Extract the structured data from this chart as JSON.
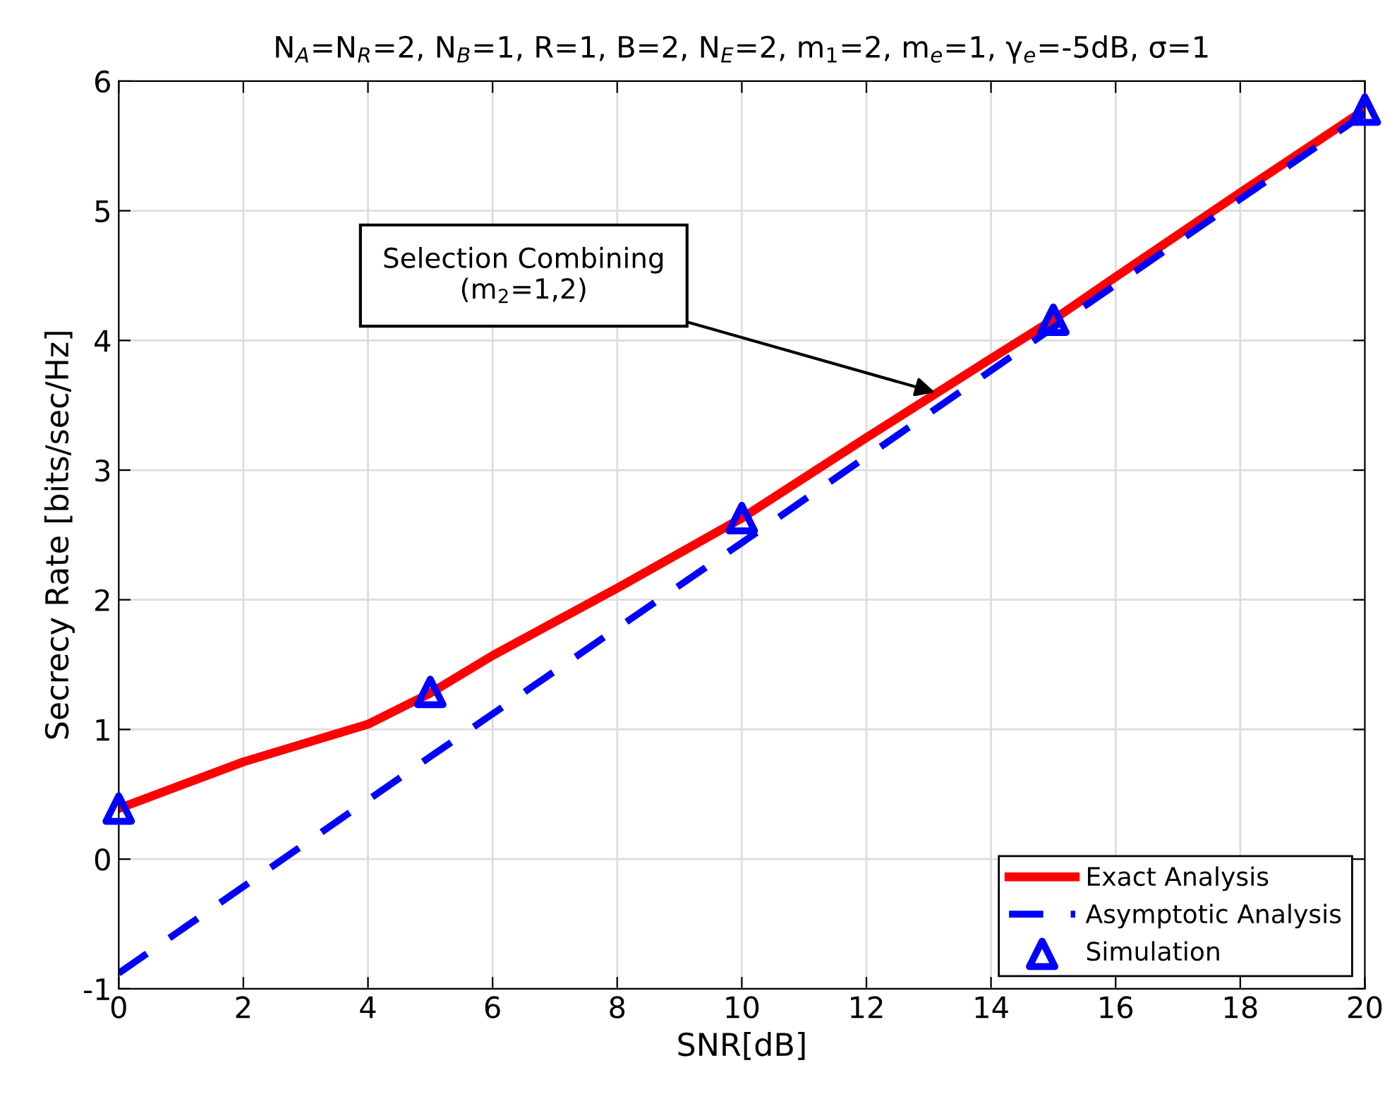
{
  "chart_data": {
    "type": "line",
    "title": "N$_{A}$=N$_{R}$=2, N$_{B}$=1, R=1, B=2, N$_{E}$=2, m$_{1}$=2, m$_{e}$=1, γ$_{e}$=-5dB, σ=1",
    "xlabel": "SNR[dB]",
    "ylabel": "Secrecy Rate [bits/sec/Hz]",
    "xlim": [
      0,
      20
    ],
    "xticks": [
      0,
      2,
      4,
      6,
      8,
      10,
      12,
      14,
      16,
      18,
      20
    ],
    "ylim": [
      -1,
      6
    ],
    "yticks": [
      -1,
      0,
      1,
      2,
      3,
      4,
      5,
      6
    ],
    "grid": true,
    "legend": "bottom right",
    "annotations": [
      {
        "text": "Selection Combining\n(m$_{2}$=1,2)",
        "x": 13.1,
        "y": 3.6
      }
    ],
    "series": [
      {
        "name": "Exact Analysis",
        "color": "#ff0000",
        "line_style": "solid",
        "marker": "none",
        "x": [
          0,
          2,
          4,
          5,
          6,
          8,
          10,
          12,
          14,
          15,
          16,
          18,
          20
        ],
        "values": [
          0.39,
          0.75,
          1.04,
          1.28,
          1.57,
          2.09,
          2.63,
          3.25,
          3.86,
          4.16,
          4.49,
          5.14,
          5.78
        ]
      },
      {
        "name": "Asymptotic Analysis",
        "color": "#0000ff",
        "line_style": "dashed",
        "marker": "none",
        "x": [
          0,
          5,
          10,
          15,
          20
        ],
        "values": [
          -0.88,
          0.79,
          2.44,
          4.1,
          5.75
        ]
      },
      {
        "name": "Simulation",
        "type": "scatter",
        "color": "#0000ff",
        "marker": "triangle",
        "x": [
          0,
          5,
          10,
          15,
          20
        ],
        "values": [
          0.39,
          1.29,
          2.63,
          4.16,
          5.78
        ]
      }
    ]
  }
}
